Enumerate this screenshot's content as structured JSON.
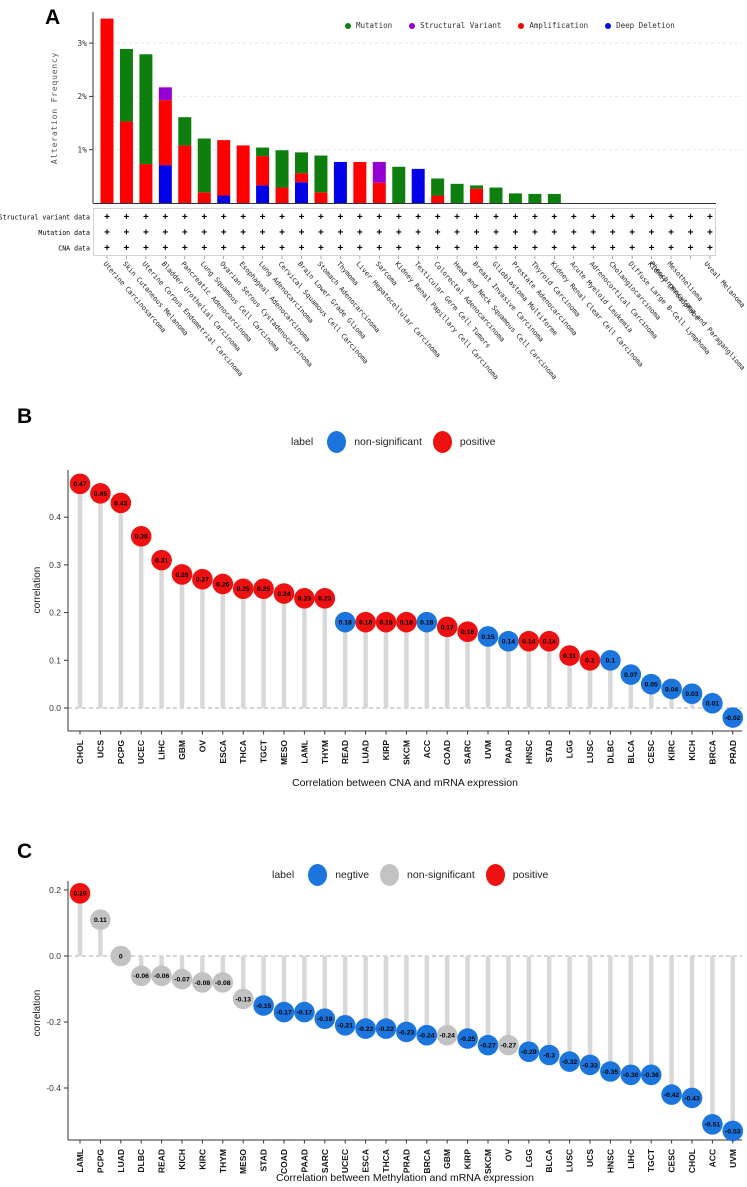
{
  "panel_a": {
    "label": "A",
    "y_axis_label": "Alteration Frequency",
    "y_ticks": [
      {
        "v": 1,
        "label": "1%"
      },
      {
        "v": 2,
        "label": "2%"
      },
      {
        "v": 3,
        "label": "3%"
      }
    ],
    "legend": [
      {
        "label": "Mutation",
        "color": "#0E7F0E"
      },
      {
        "label": "Structural Variant",
        "color": "#9400D3"
      },
      {
        "label": "Amplification",
        "color": "#FE0000"
      },
      {
        "label": "Deep Deletion",
        "color": "#0202E8"
      }
    ],
    "presence_mark": "+",
    "data_rows": [
      {
        "label": "Structural variant data"
      },
      {
        "label": "Mutation data"
      },
      {
        "label": "CNA data"
      }
    ],
    "chart_data": {
      "type": "stacked_bar",
      "y_unit": "%",
      "ylim": [
        0,
        3.6
      ],
      "grid": "dashed horizontal at 1%, 2%, 3%",
      "stack_order_bottom_to_top": [
        "deep_deletion",
        "amplification",
        "structural_variant",
        "mutation"
      ],
      "series_colors": {
        "mutation": "#0E7F0E",
        "structural_variant": "#9400D3",
        "amplification": "#FE0000",
        "deep_deletion": "#0202E8"
      },
      "categories": [
        {
          "name": "Uterine Carcinosarcoma",
          "amplification": 3.46
        },
        {
          "name": "Skin Cutaneous Melanoma",
          "amplification": 1.53,
          "mutation": 1.36
        },
        {
          "name": "Uterine Corpus Endometrial Carcinoma",
          "amplification": 0.73,
          "mutation": 2.06
        },
        {
          "name": "Bladder Urothelial Carcinoma",
          "deep_deletion": 0.71,
          "amplification": 1.22,
          "structural_variant": 0.24
        },
        {
          "name": "Pancreatic Adenocarcinoma",
          "amplification": 1.08,
          "mutation": 0.53
        },
        {
          "name": "Lung Squamous Cell Carcinoma",
          "amplification": 0.2,
          "mutation": 1.01
        },
        {
          "name": "Ovarian Serous Cystadenocarcinoma",
          "deep_deletion": 0.14,
          "amplification": 1.04
        },
        {
          "name": "Esophageal Adenocarcinoma",
          "amplification": 1.08
        },
        {
          "name": "Lung Adenocarcinoma",
          "deep_deletion": 0.33,
          "amplification": 0.55,
          "mutation": 0.16
        },
        {
          "name": "Cervical Squamous Cell Carcinoma",
          "amplification": 0.29,
          "mutation": 0.7
        },
        {
          "name": "Brain Lower Grade Glioma",
          "deep_deletion": 0.39,
          "amplification": 0.17,
          "mutation": 0.39
        },
        {
          "name": "Stomach Adenocarcinoma",
          "amplification": 0.2,
          "mutation": 0.69
        },
        {
          "name": "Thymoma",
          "deep_deletion": 0.77
        },
        {
          "name": "Liver Hepatocellular Carcinoma",
          "amplification": 0.77
        },
        {
          "name": "Sarcoma",
          "amplification": 0.38,
          "structural_variant": 0.39
        },
        {
          "name": "Kidney Renal Papillary Cell Carcinoma",
          "mutation": 0.68
        },
        {
          "name": "Testicular Germ Cell Tumors",
          "deep_deletion": 0.64
        },
        {
          "name": "Colorectal Adenocarcinoma",
          "amplification": 0.14,
          "mutation": 0.32
        },
        {
          "name": "Head and Neck Squamous Cell Carcinoma",
          "mutation": 0.36
        },
        {
          "name": "Breast Invasive Carcinoma",
          "amplification": 0.27,
          "mutation": 0.06
        },
        {
          "name": "Glioblastoma Multiforme",
          "mutation": 0.29
        },
        {
          "name": "Prostate Adenocarcinoma",
          "mutation": 0.18
        },
        {
          "name": "Thyroid Carcinoma",
          "mutation": 0.17
        },
        {
          "name": "Kidney Renal Clear Cell Carcinoma",
          "mutation": 0.17
        },
        {
          "name": "Acute Myeloid Leukemia"
        },
        {
          "name": "Adrenocortical Carcinoma"
        },
        {
          "name": "Cholangiocarcinoma"
        },
        {
          "name": "Diffuse Large B-Cell Lymphoma"
        },
        {
          "name": "Kidney Chromophobe"
        },
        {
          "name": "Mesothelioma"
        },
        {
          "name": "Pheochromocytoma and Paraganglioma"
        },
        {
          "name": "Uveal Melanoma"
        }
      ]
    }
  },
  "panel_b": {
    "label": "B",
    "legend_title": "label",
    "legend": [
      {
        "label": "non-significant",
        "color": "#1C75DD"
      },
      {
        "label": "positive",
        "color": "#EE1111"
      }
    ],
    "y_axis_label": "correlation",
    "x_axis_label": "Correlation between CNA and mRNA expression",
    "y_ticks": [
      {
        "v": 0.0,
        "label": "0.0"
      },
      {
        "v": 0.1,
        "label": "0.1"
      },
      {
        "v": 0.2,
        "label": "0.2"
      },
      {
        "v": 0.3,
        "label": "0.3"
      },
      {
        "v": 0.4,
        "label": "0.4"
      }
    ],
    "chart_data": {
      "type": "lollipop",
      "ylim": [
        -0.05,
        0.49
      ],
      "zero_line": "dashed",
      "group_colors": {
        "non-significant": "#1C75DD",
        "positive": "#EE1111"
      },
      "points": [
        {
          "x": "CHOL",
          "y": 0.47,
          "label": "0.47",
          "group": "positive"
        },
        {
          "x": "UCS",
          "y": 0.45,
          "label": "0.45",
          "group": "positive"
        },
        {
          "x": "PCPG",
          "y": 0.43,
          "label": "0.43",
          "group": "positive"
        },
        {
          "x": "UCEC",
          "y": 0.36,
          "label": "0.36",
          "group": "positive"
        },
        {
          "x": "LIHC",
          "y": 0.31,
          "label": "0.31",
          "group": "positive"
        },
        {
          "x": "GBM",
          "y": 0.28,
          "label": "0.28",
          "group": "positive"
        },
        {
          "x": "OV",
          "y": 0.27,
          "label": "0.27",
          "group": "positive"
        },
        {
          "x": "ESCA",
          "y": 0.26,
          "label": "0.26",
          "group": "positive"
        },
        {
          "x": "THCA",
          "y": 0.25,
          "label": "0.25",
          "group": "positive"
        },
        {
          "x": "TGCT",
          "y": 0.25,
          "label": "0.25",
          "group": "positive"
        },
        {
          "x": "MESO",
          "y": 0.24,
          "label": "0.24",
          "group": "positive"
        },
        {
          "x": "LAML",
          "y": 0.23,
          "label": "0.23",
          "group": "positive"
        },
        {
          "x": "THYM",
          "y": 0.23,
          "label": "0.23",
          "group": "positive"
        },
        {
          "x": "READ",
          "y": 0.18,
          "label": "0.18",
          "group": "non-significant"
        },
        {
          "x": "LUAD",
          "y": 0.18,
          "label": "0.18",
          "group": "positive"
        },
        {
          "x": "KIRP",
          "y": 0.18,
          "label": "0.18",
          "group": "positive"
        },
        {
          "x": "SKCM",
          "y": 0.18,
          "label": "0.18",
          "group": "positive"
        },
        {
          "x": "ACC",
          "y": 0.18,
          "label": "0.18",
          "group": "non-significant"
        },
        {
          "x": "COAD",
          "y": 0.17,
          "label": "0.17",
          "group": "positive"
        },
        {
          "x": "SARC",
          "y": 0.16,
          "label": "0.16",
          "group": "positive"
        },
        {
          "x": "UVM",
          "y": 0.15,
          "label": "0.15",
          "group": "non-significant"
        },
        {
          "x": "PAAD",
          "y": 0.14,
          "label": "0.14",
          "group": "non-significant"
        },
        {
          "x": "HNSC",
          "y": 0.14,
          "label": "0.14",
          "group": "positive"
        },
        {
          "x": "STAD",
          "y": 0.14,
          "label": "0.14",
          "group": "positive"
        },
        {
          "x": "LGG",
          "y": 0.11,
          "label": "0.11",
          "group": "positive"
        },
        {
          "x": "LUSC",
          "y": 0.1,
          "label": "0.1",
          "group": "positive"
        },
        {
          "x": "DLBC",
          "y": 0.1,
          "label": "0.1",
          "group": "non-significant"
        },
        {
          "x": "BLCA",
          "y": 0.07,
          "label": "0.07",
          "group": "non-significant"
        },
        {
          "x": "CESC",
          "y": 0.05,
          "label": "0.05",
          "group": "non-significant"
        },
        {
          "x": "KIRC",
          "y": 0.04,
          "label": "0.04",
          "group": "non-significant"
        },
        {
          "x": "KICH",
          "y": 0.03,
          "label": "0.03",
          "group": "non-significant"
        },
        {
          "x": "BRCA",
          "y": 0.01,
          "label": "0.01",
          "group": "non-significant"
        },
        {
          "x": "PRAD",
          "y": -0.02,
          "label": "-0.02",
          "group": "non-significant"
        }
      ]
    }
  },
  "panel_c": {
    "label": "C",
    "legend_title": "label",
    "legend": [
      {
        "label": "negtive",
        "color": "#1C75DD"
      },
      {
        "label": "non-significant",
        "color": "#C2C2C2"
      },
      {
        "label": "positive",
        "color": "#EE1111"
      }
    ],
    "y_axis_label": "correlation",
    "x_axis_label": "Correlation between Methylation and mRNA expression",
    "y_ticks": [
      {
        "v": 0.2,
        "label": "0.2"
      },
      {
        "v": 0.0,
        "label": "0.0"
      },
      {
        "v": -0.2,
        "label": "-0.2"
      },
      {
        "v": -0.4,
        "label": "-0.4"
      }
    ],
    "chart_data": {
      "type": "lollipop",
      "ylim": [
        -0.58,
        0.24
      ],
      "zero_line": "dashed",
      "group_colors": {
        "negtive": "#1C75DD",
        "non-significant": "#C2C2C2",
        "positive": "#EE1111"
      },
      "points": [
        {
          "x": "LAML",
          "y": 0.19,
          "label": "0.19",
          "group": "positive"
        },
        {
          "x": "PCPG",
          "y": 0.11,
          "label": "0.11",
          "group": "non-significant"
        },
        {
          "x": "LUAD",
          "y": 0.0,
          "label": "0",
          "group": "non-significant"
        },
        {
          "x": "DLBC",
          "y": -0.06,
          "label": "-0.06",
          "group": "non-significant"
        },
        {
          "x": "READ",
          "y": -0.06,
          "label": "-0.06",
          "group": "non-significant"
        },
        {
          "x": "KICH",
          "y": -0.07,
          "label": "-0.07",
          "group": "non-significant"
        },
        {
          "x": "KIRC",
          "y": -0.08,
          "label": "-0.08",
          "group": "non-significant"
        },
        {
          "x": "THYM",
          "y": -0.08,
          "label": "-0.08",
          "group": "non-significant"
        },
        {
          "x": "MESO",
          "y": -0.13,
          "label": "-0.13",
          "group": "non-significant"
        },
        {
          "x": "STAD",
          "y": -0.15,
          "label": "-0.15",
          "group": "negtive"
        },
        {
          "x": "COAD",
          "y": -0.17,
          "label": "-0.17",
          "group": "negtive"
        },
        {
          "x": "PAAD",
          "y": -0.17,
          "label": "-0.17",
          "group": "negtive"
        },
        {
          "x": "SARC",
          "y": -0.19,
          "label": "-0.19",
          "group": "negtive"
        },
        {
          "x": "UCEC",
          "y": -0.21,
          "label": "-0.21",
          "group": "negtive"
        },
        {
          "x": "ESCA",
          "y": -0.22,
          "label": "-0.22",
          "group": "negtive"
        },
        {
          "x": "THCA",
          "y": -0.22,
          "label": "-0.22",
          "group": "negtive"
        },
        {
          "x": "PRAD",
          "y": -0.23,
          "label": "-0.23",
          "group": "negtive"
        },
        {
          "x": "BRCA",
          "y": -0.24,
          "label": "-0.24",
          "group": "negtive"
        },
        {
          "x": "GBM",
          "y": -0.24,
          "label": "-0.24",
          "group": "non-significant"
        },
        {
          "x": "KIRP",
          "y": -0.25,
          "label": "-0.25",
          "group": "negtive"
        },
        {
          "x": "SKCM",
          "y": -0.27,
          "label": "-0.27",
          "group": "negtive"
        },
        {
          "x": "OV",
          "y": -0.27,
          "label": "-0.27",
          "group": "non-significant"
        },
        {
          "x": "LGG",
          "y": -0.29,
          "label": "-0.29",
          "group": "negtive"
        },
        {
          "x": "BLCA",
          "y": -0.3,
          "label": "-0.3",
          "group": "negtive"
        },
        {
          "x": "LUSC",
          "y": -0.32,
          "label": "-0.32",
          "group": "negtive"
        },
        {
          "x": "UCS",
          "y": -0.33,
          "label": "-0.33",
          "group": "negtive"
        },
        {
          "x": "HNSC",
          "y": -0.35,
          "label": "-0.35",
          "group": "negtive"
        },
        {
          "x": "LIHC",
          "y": -0.36,
          "label": "-0.36",
          "group": "negtive"
        },
        {
          "x": "TGCT",
          "y": -0.36,
          "label": "-0.36",
          "group": "negtive"
        },
        {
          "x": "CESC",
          "y": -0.42,
          "label": "-0.42",
          "group": "negtive"
        },
        {
          "x": "CHOL",
          "y": -0.43,
          "label": "-0.43",
          "group": "negtive"
        },
        {
          "x": "ACC",
          "y": -0.51,
          "label": "-0.51",
          "group": "negtive"
        },
        {
          "x": "UVM",
          "y": -0.53,
          "label": "-0.53",
          "group": "negtive"
        }
      ]
    }
  }
}
